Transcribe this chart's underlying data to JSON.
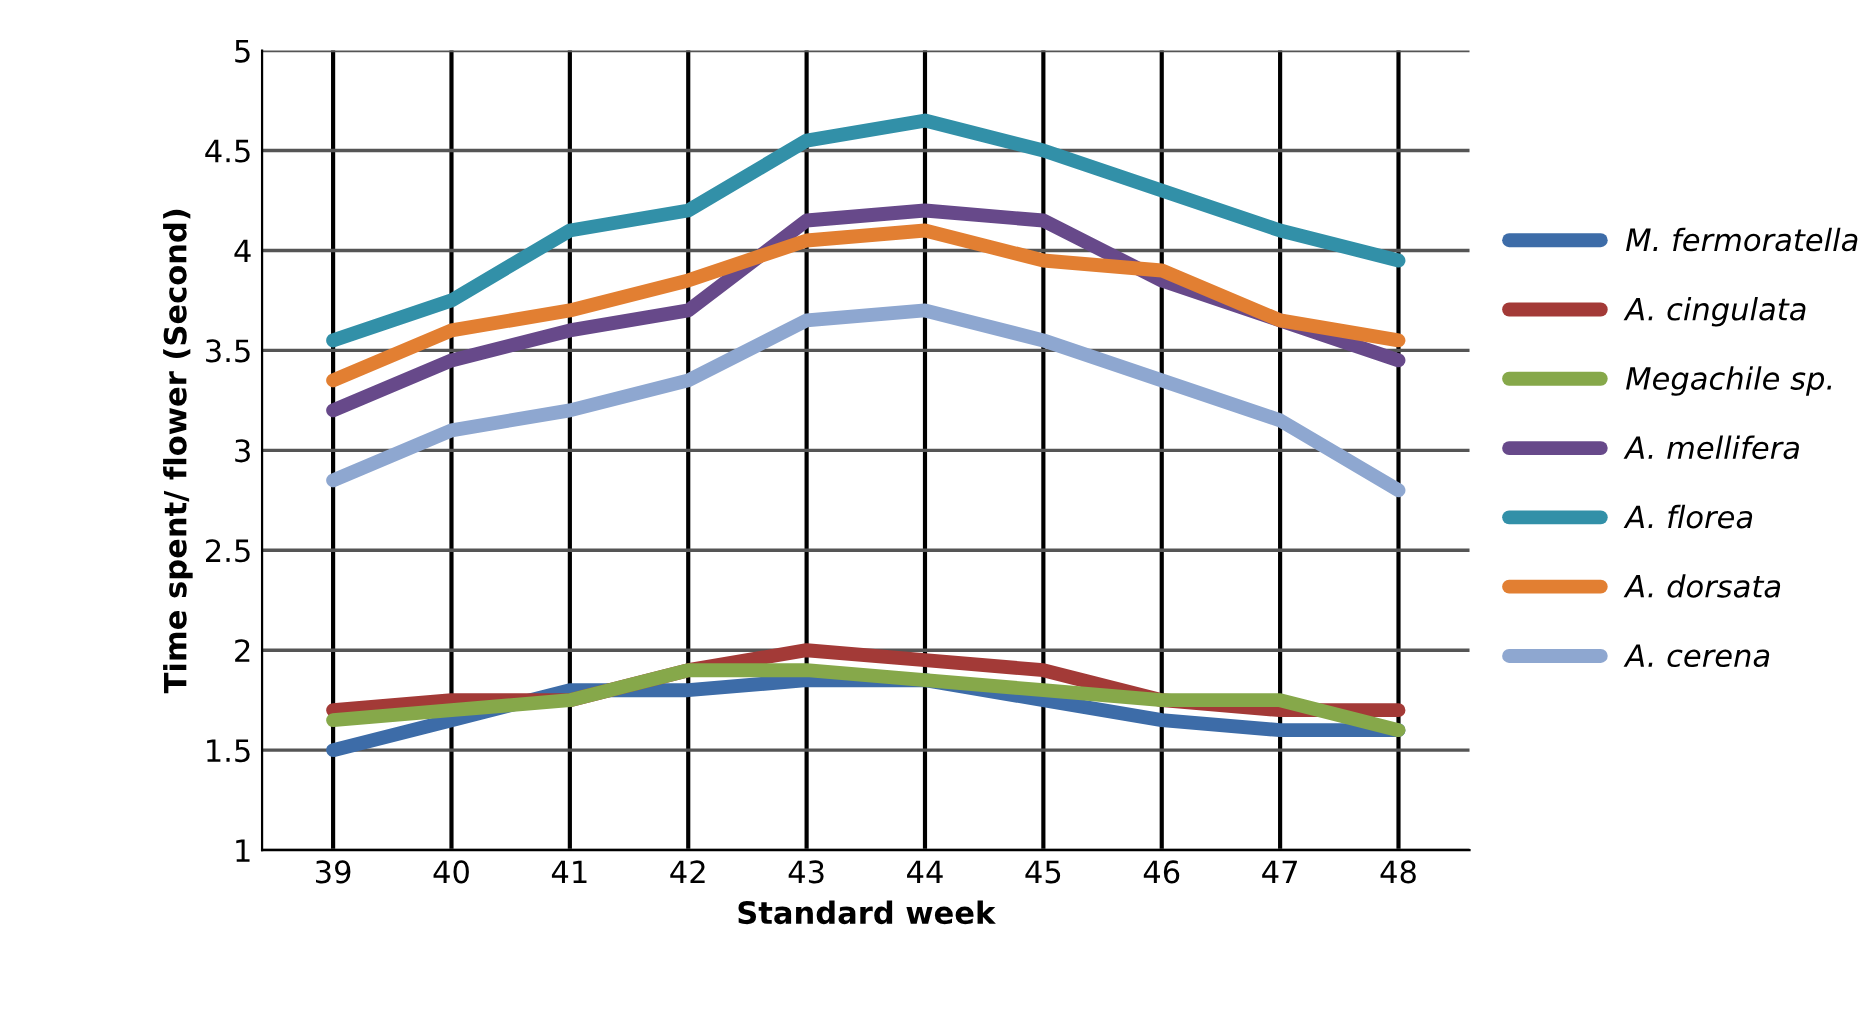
{
  "chart_data": {
    "type": "line",
    "xlabel": "Standard week",
    "ylabel": "Time spent/ flower (Second)",
    "categories": [
      "39",
      "40",
      "41",
      "42",
      "43",
      "44",
      "45",
      "46",
      "47",
      "48"
    ],
    "ylim": [
      1,
      5
    ],
    "yticks": [
      1,
      1.5,
      2,
      2.5,
      3,
      3.5,
      4,
      4.5,
      5
    ],
    "grid": true,
    "legend": "right",
    "marker": "none",
    "line_style": "solid",
    "series": [
      {
        "name": "M. fermoratella",
        "color": "#3d6ca8",
        "values": [
          1.5,
          1.65,
          1.8,
          1.8,
          1.85,
          1.85,
          1.75,
          1.65,
          1.6,
          1.6
        ]
      },
      {
        "name": "A. cingulata",
        "color": "#a33a37",
        "values": [
          1.7,
          1.75,
          1.75,
          1.9,
          2.0,
          1.95,
          1.9,
          1.75,
          1.7,
          1.7
        ]
      },
      {
        "name": "Megachile sp.",
        "color": "#86a84a",
        "values": [
          1.65,
          1.7,
          1.75,
          1.9,
          1.9,
          1.85,
          1.8,
          1.75,
          1.75,
          1.6
        ]
      },
      {
        "name": "A. mellifera",
        "color": "#67498a",
        "values": [
          3.2,
          3.45,
          3.6,
          3.7,
          4.15,
          4.2,
          4.15,
          3.85,
          3.65,
          3.45
        ]
      },
      {
        "name": "A. florea",
        "color": "#3290a8",
        "values": [
          3.55,
          3.75,
          4.1,
          4.2,
          4.55,
          4.65,
          4.5,
          4.3,
          4.1,
          3.95
        ]
      },
      {
        "name": "A. dorsata",
        "color": "#e27f32",
        "values": [
          3.35,
          3.6,
          3.7,
          3.85,
          4.05,
          4.1,
          3.95,
          3.9,
          3.65,
          3.55
        ]
      },
      {
        "name": "A. cerena",
        "color": "#8ea7d0",
        "values": [
          2.85,
          3.1,
          3.2,
          3.35,
          3.65,
          3.7,
          3.55,
          3.35,
          3.15,
          2.8
        ]
      }
    ]
  }
}
